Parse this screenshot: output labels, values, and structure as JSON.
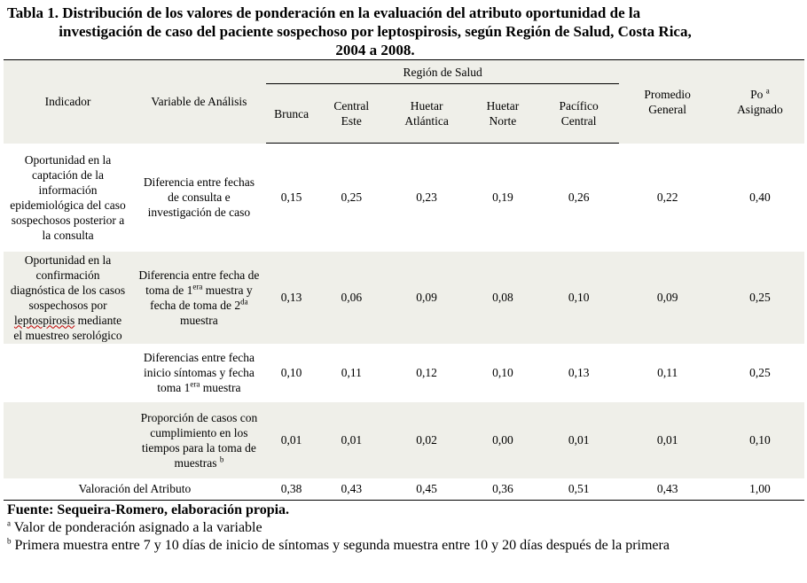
{
  "title": {
    "line1": "Tabla 1. Distribución de los valores de ponderación en la evaluación del atributo oportunidad de la",
    "line2": "investigación de caso del paciente sospechoso por leptospirosis, según Región de Salud, Costa Rica,",
    "line3": "2004 a 2008."
  },
  "header": {
    "indicador": "Indicador",
    "variable": "Variable de Análisis",
    "region": "Región de Salud",
    "regions": [
      "Brunca",
      "Central Este",
      "Huetar Atlántica",
      "Huetar Norte",
      "Pacífico Central"
    ],
    "promedio": "Promedio General",
    "po": "Po",
    "po_sup": "a",
    "po_asignado": "Asignado"
  },
  "rows": [
    {
      "indicator": "Oportunidad en la captación de la información epidemiológica del caso sospechosos posterior a la consulta",
      "variable": "Diferencia entre fechas de consulta e investigación de caso",
      "values": [
        "0,15",
        "0,25",
        "0,23",
        "0,19",
        "0,26"
      ],
      "promedio": "0,22",
      "po": "0,40"
    },
    {
      "indicator_a": "Oportunidad en la confirmación diagnóstica de los casos sospechosos por",
      "indicator_b": "leptospirosis",
      "indicator_c": "mediante el muestreo serológico",
      "variable_a": "Diferencia entre fecha de toma de 1",
      "variable_sup1": "era",
      "variable_b": "muestra y fecha de toma de 2",
      "variable_sup2": "da",
      "variable_c": "muestra",
      "values": [
        "0,13",
        "0,06",
        "0,09",
        "0,08",
        "0,10"
      ],
      "promedio": "0,09",
      "po": "0,25"
    },
    {
      "variable_a": "Diferencias entre fecha inicio síntomas y fecha toma 1",
      "variable_sup": "era",
      "variable_b": "muestra",
      "values": [
        "0,10",
        "0,11",
        "0,12",
        "0,10",
        "0,13"
      ],
      "promedio": "0,11",
      "po": "0,25"
    },
    {
      "variable": "Proporción de casos con cumplimiento en los tiempos para la toma de muestras",
      "variable_sup": "b",
      "values": [
        "0,01",
        "0,01",
        "0,02",
        "0,00",
        "0,01"
      ],
      "promedio": "0,01",
      "po": "0,10"
    }
  ],
  "total": {
    "label": "Valoración del Atributo",
    "values": [
      "0,38",
      "0,43",
      "0,45",
      "0,36",
      "0,51"
    ],
    "promedio": "0,43",
    "po": "1,00"
  },
  "footer": {
    "source": "Fuente: Sequeira-Romero, elaboración propia.",
    "note_a_mark": "a",
    "note_a": "Valor de ponderación asignado a la variable",
    "note_b_mark": "b",
    "note_b": "Primera muestra entre 7 y 10 días de inicio de síntomas y segunda muestra entre 10 y 20 días después de la primera"
  }
}
